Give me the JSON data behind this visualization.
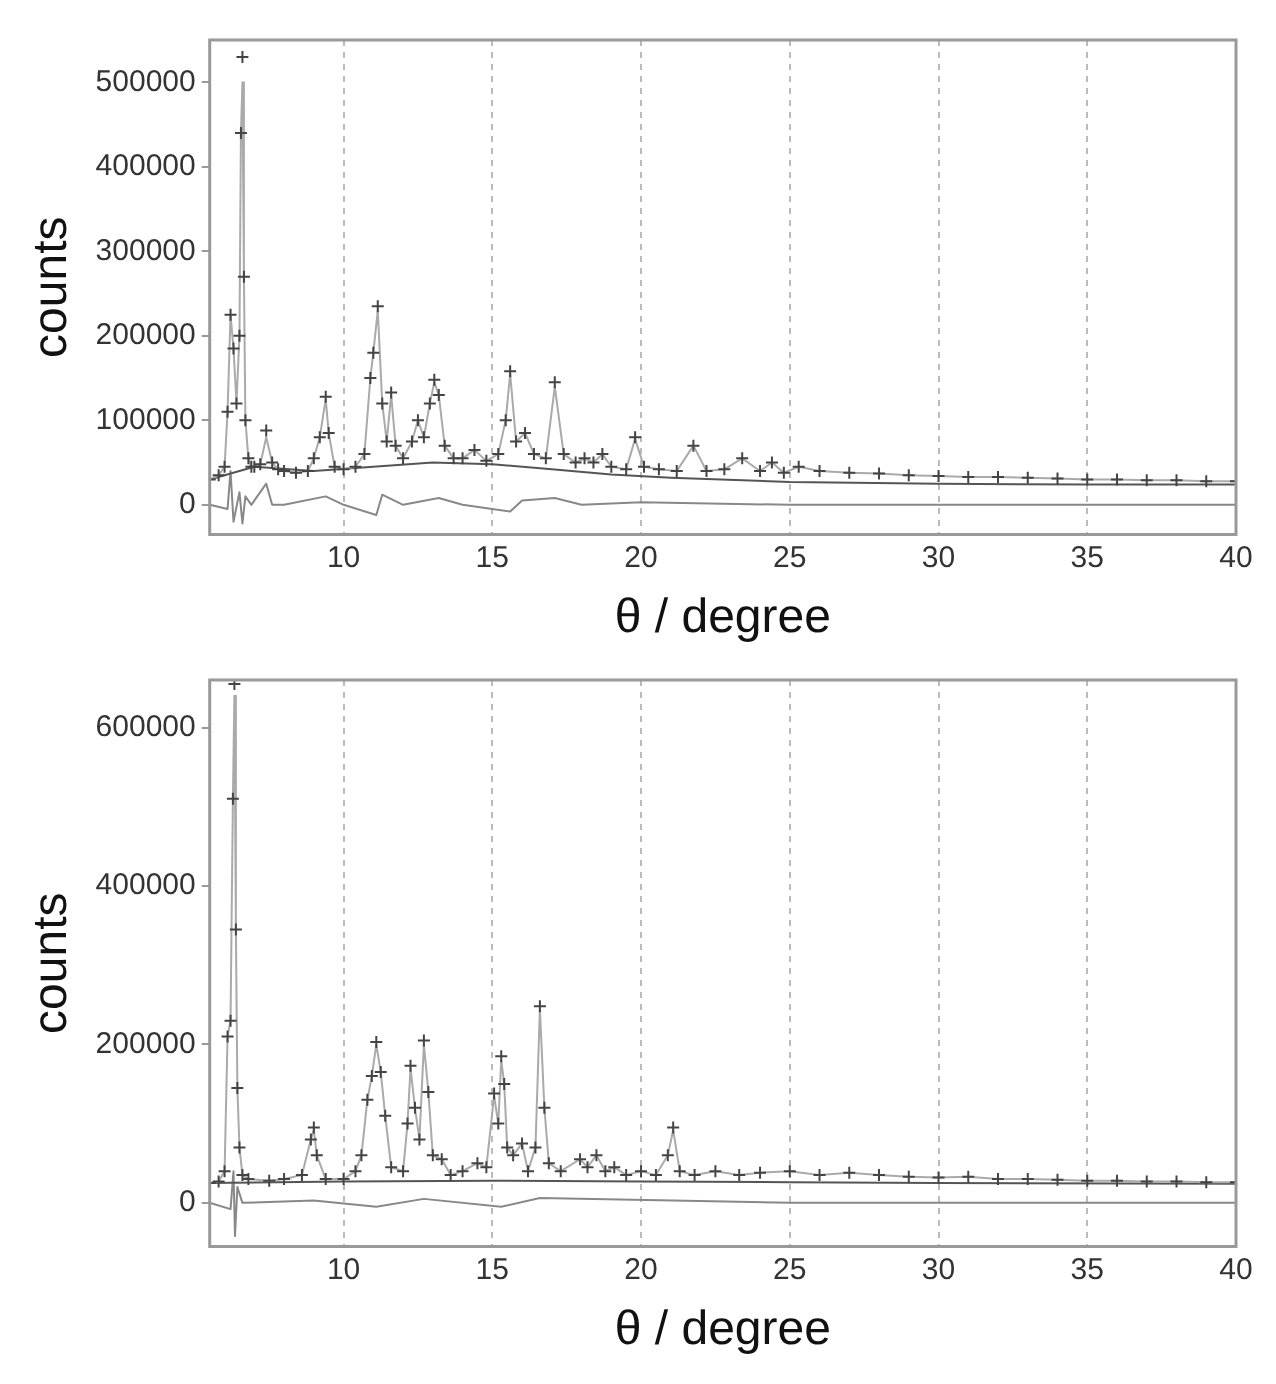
{
  "chart_data": [
    {
      "type": "line",
      "xlabel": "θ / degree",
      "ylabel": "counts",
      "xlim": [
        5.5,
        40
      ],
      "ylim": [
        -35000,
        550000
      ],
      "xticks": [
        10,
        15,
        20,
        25,
        30,
        35,
        40
      ],
      "yticks": [
        0,
        100000,
        200000,
        300000,
        400000,
        500000
      ],
      "grid": "x",
      "legend": false,
      "series": [
        {
          "type": "scatter",
          "marker": "cross",
          "color": "#444444",
          "x": [
            5.5,
            5.8,
            6.0,
            6.1,
            6.2,
            6.3,
            6.4,
            6.5,
            6.55,
            6.6,
            6.65,
            6.7,
            6.8,
            6.9,
            7.0,
            7.2,
            7.4,
            7.6,
            7.8,
            8.0,
            8.4,
            8.8,
            9.0,
            9.2,
            9.4,
            9.5,
            9.7,
            10.0,
            10.4,
            10.7,
            10.9,
            11.0,
            11.15,
            11.3,
            11.45,
            11.6,
            11.75,
            12.0,
            12.3,
            12.5,
            12.7,
            12.9,
            13.05,
            13.2,
            13.4,
            13.7,
            14.0,
            14.4,
            14.8,
            15.2,
            15.45,
            15.6,
            15.8,
            16.1,
            16.4,
            16.8,
            17.1,
            17.4,
            17.8,
            18.1,
            18.4,
            18.7,
            19.0,
            19.5,
            19.8,
            20.1,
            20.6,
            21.2,
            21.76,
            22.2,
            22.8,
            23.4,
            24.0,
            24.4,
            24.8,
            25.3,
            26,
            27,
            28,
            29,
            30,
            31,
            32,
            33,
            34,
            35,
            36,
            37,
            38,
            39,
            40
          ],
          "values": [
            30000,
            35000,
            45000,
            110000,
            225000,
            185000,
            120000,
            200000,
            440000,
            530000,
            270000,
            100000,
            55000,
            45000,
            45000,
            48000,
            88000,
            50000,
            42000,
            40000,
            38000,
            40000,
            55000,
            80000,
            128000,
            85000,
            45000,
            42000,
            45000,
            60000,
            150000,
            180000,
            235000,
            120000,
            75000,
            133000,
            70000,
            55000,
            75000,
            100000,
            80000,
            120000,
            148000,
            130000,
            70000,
            55000,
            55000,
            65000,
            52000,
            60000,
            100000,
            158000,
            75000,
            85000,
            60000,
            55000,
            145000,
            60000,
            50000,
            55000,
            50000,
            60000,
            45000,
            42000,
            80000,
            45000,
            42000,
            40000,
            70000,
            40000,
            42000,
            55000,
            40000,
            50000,
            38000,
            45000,
            40000,
            38000,
            37000,
            35000,
            34000,
            33000,
            33000,
            32000,
            31000,
            30000,
            30000,
            29000,
            29000,
            28000,
            28000
          ]
        },
        {
          "type": "line",
          "line_style": "solid",
          "color": "#aaaaaa",
          "x": [
            5.5,
            5.8,
            6.0,
            6.1,
            6.2,
            6.3,
            6.4,
            6.5,
            6.55,
            6.6,
            6.65,
            6.7,
            6.8,
            6.9,
            7.0,
            7.2,
            7.4,
            7.6,
            7.8,
            8.0,
            8.4,
            8.8,
            9.0,
            9.2,
            9.4,
            9.5,
            9.7,
            10.0,
            10.4,
            10.7,
            10.9,
            11.0,
            11.15,
            11.3,
            11.45,
            11.6,
            11.75,
            12.0,
            12.3,
            12.5,
            12.7,
            12.9,
            13.05,
            13.2,
            13.4,
            13.7,
            14.0,
            14.4,
            14.8,
            15.2,
            15.45,
            15.6,
            15.8,
            16.1,
            16.4,
            16.8,
            17.1,
            17.4,
            17.8,
            18.1,
            18.4,
            18.7,
            19.0,
            19.5,
            19.8,
            20.1,
            20.6,
            21.2,
            21.76,
            22.2,
            22.8,
            23.4,
            24.0,
            24.4,
            24.8,
            25.3,
            26,
            27,
            28,
            29,
            30,
            31,
            32,
            33,
            34,
            35,
            36,
            37,
            38,
            39,
            40
          ],
          "values": [
            30000,
            35000,
            45000,
            110000,
            225000,
            185000,
            120000,
            200000,
            440000,
            500000,
            270000,
            100000,
            55000,
            45000,
            45000,
            48000,
            80000,
            50000,
            42000,
            40000,
            38000,
            40000,
            55000,
            80000,
            125000,
            85000,
            45000,
            42000,
            45000,
            60000,
            150000,
            180000,
            230000,
            120000,
            75000,
            130000,
            70000,
            55000,
            75000,
            100000,
            80000,
            120000,
            145000,
            130000,
            70000,
            55000,
            55000,
            65000,
            52000,
            60000,
            100000,
            155000,
            75000,
            85000,
            60000,
            55000,
            140000,
            60000,
            50000,
            55000,
            50000,
            60000,
            45000,
            42000,
            78000,
            45000,
            42000,
            40000,
            70000,
            40000,
            42000,
            55000,
            40000,
            50000,
            38000,
            45000,
            40000,
            38000,
            37000,
            35000,
            34000,
            33000,
            33000,
            32000,
            31000,
            30000,
            30000,
            29000,
            29000,
            28000,
            28000
          ]
        },
        {
          "type": "line",
          "line_style": "solid",
          "color": "#555555",
          "x": [
            5.5,
            7,
            9,
            11,
            13,
            15,
            17,
            19,
            21,
            25,
            30,
            35,
            40
          ],
          "values": [
            30000,
            45000,
            40000,
            45000,
            50000,
            48000,
            42000,
            36000,
            32000,
            27000,
            25000,
            24000,
            24000
          ]
        },
        {
          "type": "line",
          "line_style": "solid",
          "color": "#888888",
          "x": [
            5.5,
            6.1,
            6.2,
            6.3,
            6.5,
            6.6,
            6.7,
            6.9,
            7.4,
            7.6,
            8,
            9.4,
            10,
            11.1,
            11.3,
            12,
            13.2,
            14,
            15.6,
            16,
            17.1,
            18,
            20,
            25,
            30,
            35,
            40
          ],
          "values": [
            0,
            -5000,
            40000,
            -20000,
            15000,
            -22000,
            10000,
            0,
            25000,
            0,
            0,
            10000,
            0,
            -12000,
            12000,
            0,
            8000,
            0,
            -8000,
            5000,
            8000,
            0,
            3000,
            0,
            0,
            0,
            0
          ]
        }
      ]
    },
    {
      "type": "line",
      "xlabel": "θ / degree",
      "ylabel": "counts",
      "xlim": [
        5.5,
        40
      ],
      "ylim": [
        -55000,
        660000
      ],
      "xticks": [
        10,
        15,
        20,
        25,
        30,
        35,
        40
      ],
      "yticks": [
        0,
        200000,
        400000,
        600000
      ],
      "grid": "x",
      "legend": false,
      "series": [
        {
          "type": "scatter",
          "marker": "cross",
          "color": "#444444",
          "x": [
            5.5,
            5.8,
            6.0,
            6.1,
            6.2,
            6.28,
            6.33,
            6.38,
            6.43,
            6.5,
            6.6,
            6.8,
            7.5,
            8.0,
            8.6,
            8.9,
            9.0,
            9.1,
            9.4,
            10.0,
            10.4,
            10.6,
            10.8,
            10.95,
            11.1,
            11.25,
            11.4,
            11.6,
            12.0,
            12.15,
            12.25,
            12.4,
            12.55,
            12.7,
            12.85,
            13.0,
            13.3,
            13.6,
            14.0,
            14.5,
            14.8,
            15.06,
            15.2,
            15.3,
            15.4,
            15.5,
            15.7,
            16.0,
            16.2,
            16.45,
            16.6,
            16.75,
            16.9,
            17.3,
            17.95,
            18.2,
            18.5,
            18.8,
            19.1,
            19.5,
            20.0,
            20.5,
            20.9,
            21.08,
            21.3,
            21.8,
            22.5,
            23.3,
            24,
            25,
            26,
            27,
            28,
            29,
            30,
            31,
            32,
            33,
            34,
            35,
            36,
            37,
            38,
            39,
            40
          ],
          "values": [
            25000,
            27000,
            40000,
            210000,
            230000,
            510000,
            655000,
            345000,
            145000,
            70000,
            35000,
            30000,
            28000,
            30000,
            35000,
            80000,
            95000,
            60000,
            30000,
            30000,
            40000,
            60000,
            130000,
            160000,
            203000,
            165000,
            110000,
            45000,
            40000,
            100000,
            173000,
            120000,
            80000,
            205000,
            140000,
            60000,
            55000,
            35000,
            40000,
            50000,
            45000,
            138000,
            100000,
            185000,
            150000,
            70000,
            60000,
            75000,
            40000,
            70000,
            248000,
            120000,
            50000,
            40000,
            55000,
            45000,
            60000,
            40000,
            45000,
            35000,
            40000,
            35000,
            60000,
            95000,
            40000,
            35000,
            40000,
            35000,
            38000,
            40000,
            35000,
            38000,
            35000,
            33000,
            32000,
            33000,
            30000,
            30000,
            29000,
            28000,
            28000,
            27000,
            27000,
            26000,
            26000
          ]
        },
        {
          "type": "line",
          "line_style": "solid",
          "color": "#aaaaaa",
          "x": [
            5.5,
            5.8,
            6.0,
            6.1,
            6.2,
            6.28,
            6.33,
            6.38,
            6.43,
            6.5,
            6.6,
            6.8,
            7.5,
            8.0,
            8.6,
            8.9,
            9.0,
            9.1,
            9.4,
            10.0,
            10.4,
            10.6,
            10.8,
            10.95,
            11.1,
            11.25,
            11.4,
            11.6,
            12.0,
            12.15,
            12.25,
            12.4,
            12.55,
            12.7,
            12.85,
            13.0,
            13.3,
            13.6,
            14.0,
            14.5,
            14.8,
            15.06,
            15.2,
            15.3,
            15.4,
            15.5,
            15.7,
            16.0,
            16.2,
            16.45,
            16.6,
            16.75,
            16.9,
            17.3,
            17.95,
            18.2,
            18.5,
            18.8,
            19.1,
            19.5,
            20.0,
            20.5,
            20.9,
            21.08,
            21.3,
            21.8,
            22.5,
            23.3,
            24,
            25,
            26,
            27,
            28,
            29,
            30,
            31,
            32,
            33,
            34,
            35,
            36,
            37,
            38,
            39,
            40
          ],
          "values": [
            25000,
            27000,
            40000,
            210000,
            230000,
            510000,
            640000,
            345000,
            145000,
            70000,
            35000,
            30000,
            28000,
            30000,
            35000,
            80000,
            92000,
            60000,
            30000,
            30000,
            40000,
            60000,
            130000,
            160000,
            200000,
            165000,
            110000,
            45000,
            40000,
            100000,
            170000,
            120000,
            80000,
            200000,
            140000,
            60000,
            55000,
            35000,
            40000,
            50000,
            45000,
            135000,
            100000,
            180000,
            150000,
            70000,
            60000,
            75000,
            40000,
            70000,
            245000,
            120000,
            50000,
            40000,
            55000,
            45000,
            60000,
            40000,
            45000,
            35000,
            40000,
            35000,
            60000,
            92000,
            40000,
            35000,
            40000,
            35000,
            38000,
            40000,
            35000,
            38000,
            35000,
            33000,
            32000,
            33000,
            30000,
            30000,
            29000,
            28000,
            28000,
            27000,
            27000,
            26000,
            26000
          ]
        },
        {
          "type": "line",
          "line_style": "solid",
          "color": "#555555",
          "x": [
            5.5,
            10,
            15,
            20,
            25,
            30,
            40
          ],
          "values": [
            25000,
            27000,
            28000,
            27000,
            26000,
            25000,
            24000
          ]
        },
        {
          "type": "line",
          "line_style": "solid",
          "color": "#888888",
          "x": [
            5.5,
            6.2,
            6.3,
            6.35,
            6.43,
            6.6,
            9,
            11.1,
            12.7,
            15.3,
            16.6,
            21.08,
            25,
            30,
            40
          ],
          "values": [
            0,
            -8000,
            40000,
            -42000,
            20000,
            0,
            3000,
            -5000,
            5000,
            -5000,
            6000,
            3000,
            0,
            0,
            0
          ]
        }
      ]
    }
  ]
}
